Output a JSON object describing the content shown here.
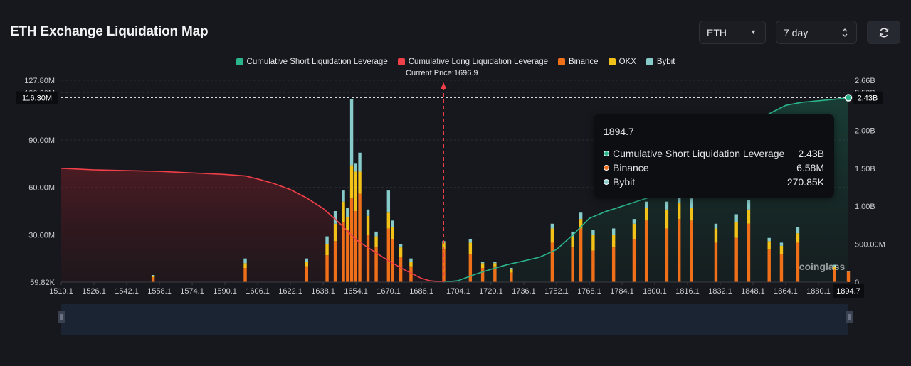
{
  "header": {
    "title": "ETH Exchange Liquidation Map"
  },
  "controls": {
    "coin": "ETH",
    "range": "7 day",
    "coin_icon": "chevron-down-icon",
    "range_icon": "updown-icon",
    "refresh_icon": "refresh-icon"
  },
  "legend": [
    {
      "label": "Cumulative Short Liquidation Leverage",
      "color": "#2bb58b"
    },
    {
      "label": "Cumulative Long Liquidation Leverage",
      "color": "#ef3f48"
    },
    {
      "label": "Binance",
      "color": "#f0701a"
    },
    {
      "label": "OKX",
      "color": "#f3c218"
    },
    {
      "label": "Bybit",
      "color": "#86cbc9"
    }
  ],
  "current_price_label": "Current Price:1696.9",
  "crosshair": {
    "left_value": "116.30M",
    "right_value": "2.43B",
    "x_value": "1894.7"
  },
  "tooltip": {
    "title": "1894.7",
    "rows": [
      {
        "label": "Cumulative Short Liquidation Leverage",
        "value": "2.43B",
        "color": "#2bb58b"
      },
      {
        "label": "Binance",
        "value": "6.58M",
        "color": "#f0701a"
      },
      {
        "label": "Bybit",
        "value": "270.85K",
        "color": "#86cbc9"
      }
    ]
  },
  "watermark": "coinglass",
  "chart_data": {
    "type": "bar",
    "title": "ETH Exchange Liquidation Map",
    "x_ticks": [
      "1510.1",
      "1526.1",
      "1542.1",
      "1558.1",
      "1574.1",
      "1590.1",
      "1606.1",
      "1622.1",
      "1638.1",
      "1654.1",
      "1670.1",
      "1686.1",
      "1704.1",
      "1720.1",
      "1736.1",
      "1752.1",
      "1768.1",
      "1784.1",
      "1800.1",
      "1816.1",
      "1832.1",
      "1848.1",
      "1864.1",
      "1880.1"
    ],
    "x_range": [
      1510.1,
      1894.7
    ],
    "y_left_ticks": [
      "59.82K",
      "30.00M",
      "60.00M",
      "90.00M",
      "120.00M",
      "127.80M"
    ],
    "y_left_range": [
      0,
      127800000
    ],
    "y_right_ticks": [
      "0",
      "500.00M",
      "1.00B",
      "1.50B",
      "2.00B",
      "2.50B",
      "2.66B"
    ],
    "y_right_range": [
      0,
      2660000000
    ],
    "current_price": 1696.9,
    "series": [
      {
        "name": "Binance",
        "color": "#f0701a",
        "axis": "left",
        "x": [
          1555.0,
          1600.0,
          1630.0,
          1640.0,
          1644.0,
          1648.0,
          1650.0,
          1652.0,
          1654.0,
          1656.0,
          1660.0,
          1664.0,
          1670.0,
          1672.0,
          1676.0,
          1681.0,
          1697.0,
          1710.0,
          1716.0,
          1722.0,
          1730.0,
          1750.0,
          1760.0,
          1764.0,
          1770.0,
          1780.0,
          1790.0,
          1796.0,
          1806.0,
          1812.0,
          1818.0,
          1830.0,
          1840.0,
          1846.0,
          1856.0,
          1862.0,
          1870.0,
          1888.0,
          1894.7
        ],
        "values": [
          3000000,
          9000000,
          10000000,
          17000000,
          26000000,
          38000000,
          33000000,
          53000000,
          45000000,
          56000000,
          30000000,
          22000000,
          34000000,
          27000000,
          16000000,
          10000000,
          21000000,
          18000000,
          9000000,
          10000000,
          6000000,
          25000000,
          22000000,
          34000000,
          20000000,
          22000000,
          27000000,
          39000000,
          34000000,
          40000000,
          39000000,
          25000000,
          28000000,
          37000000,
          21000000,
          18000000,
          25000000,
          8000000,
          6580000
        ]
      },
      {
        "name": "OKX",
        "color": "#f3c218",
        "axis": "left",
        "x": [
          1555.0,
          1600.0,
          1630.0,
          1640.0,
          1644.0,
          1648.0,
          1650.0,
          1652.0,
          1654.0,
          1656.0,
          1660.0,
          1664.0,
          1670.0,
          1672.0,
          1676.0,
          1681.0,
          1697.0,
          1710.0,
          1716.0,
          1722.0,
          1730.0,
          1750.0,
          1760.0,
          1764.0,
          1770.0,
          1780.0,
          1790.0,
          1796.0,
          1806.0,
          1812.0,
          1818.0,
          1830.0,
          1840.0,
          1846.0,
          1856.0,
          1862.0,
          1870.0,
          1888.0,
          1894.7
        ],
        "values": [
          1000000,
          3000000,
          3000000,
          7000000,
          11000000,
          13000000,
          8000000,
          21000000,
          25000000,
          14000000,
          12000000,
          7000000,
          10000000,
          8000000,
          6000000,
          3000000,
          4000000,
          7000000,
          3000000,
          2000000,
          2000000,
          9000000,
          7000000,
          6000000,
          10000000,
          8000000,
          10000000,
          8000000,
          12000000,
          10000000,
          8000000,
          9000000,
          10000000,
          9000000,
          5000000,
          5000000,
          6000000,
          2000000,
          0
        ]
      },
      {
        "name": "Bybit",
        "color": "#86cbc9",
        "axis": "left",
        "x": [
          1555.0,
          1600.0,
          1630.0,
          1640.0,
          1644.0,
          1648.0,
          1650.0,
          1652.0,
          1654.0,
          1656.0,
          1660.0,
          1664.0,
          1670.0,
          1672.0,
          1676.0,
          1681.0,
          1697.0,
          1710.0,
          1716.0,
          1722.0,
          1730.0,
          1750.0,
          1760.0,
          1764.0,
          1770.0,
          1780.0,
          1790.0,
          1796.0,
          1806.0,
          1812.0,
          1818.0,
          1830.0,
          1840.0,
          1846.0,
          1856.0,
          1862.0,
          1870.0,
          1888.0,
          1894.7
        ],
        "values": [
          500000,
          3000000,
          2000000,
          5000000,
          8000000,
          7000000,
          6000000,
          42000000,
          5000000,
          12000000,
          4000000,
          3000000,
          14000000,
          4000000,
          2000000,
          2000000,
          1000000,
          2000000,
          1000000,
          1000000,
          1000000,
          3000000,
          3000000,
          4000000,
          3000000,
          4000000,
          3000000,
          4000000,
          5000000,
          6000000,
          6000000,
          3000000,
          5000000,
          6000000,
          2000000,
          2000000,
          4000000,
          1000000,
          270850
        ]
      },
      {
        "name": "Cumulative Long Liquidation Leverage",
        "color": "#ef3f48",
        "axis": "right",
        "x": [
          1510.1,
          1526.1,
          1542.1,
          1558.1,
          1574.1,
          1590.1,
          1600.0,
          1606.1,
          1614.0,
          1622.1,
          1630.0,
          1638.1,
          1646.0,
          1654.1,
          1662.0,
          1670.1,
          1678.0,
          1686.1,
          1690.0,
          1696.9
        ],
        "values": [
          1500000000,
          1480000000,
          1470000000,
          1460000000,
          1440000000,
          1420000000,
          1400000000,
          1360000000,
          1300000000,
          1220000000,
          1110000000,
          970000000,
          780000000,
          560000000,
          420000000,
          280000000,
          160000000,
          50000000,
          20000000,
          0
        ]
      },
      {
        "name": "Cumulative Short Liquidation Leverage",
        "color": "#2bb58b",
        "axis": "right",
        "x": [
          1696.9,
          1704.1,
          1712.0,
          1720.1,
          1728.0,
          1736.1,
          1744.0,
          1752.1,
          1760.0,
          1768.1,
          1776.0,
          1784.1,
          1792.0,
          1800.1,
          1808.0,
          1816.1,
          1824.0,
          1832.1,
          1840.0,
          1848.1,
          1856.0,
          1864.1,
          1872.0,
          1880.1,
          1888.0,
          1894.7
        ],
        "values": [
          0,
          20000000,
          100000000,
          170000000,
          230000000,
          280000000,
          330000000,
          430000000,
          620000000,
          840000000,
          930000000,
          1000000000,
          1070000000,
          1140000000,
          1180000000,
          1280000000,
          1500000000,
          1680000000,
          1870000000,
          2080000000,
          2220000000,
          2330000000,
          2370000000,
          2390000000,
          2410000000,
          2430000000
        ]
      }
    ]
  }
}
